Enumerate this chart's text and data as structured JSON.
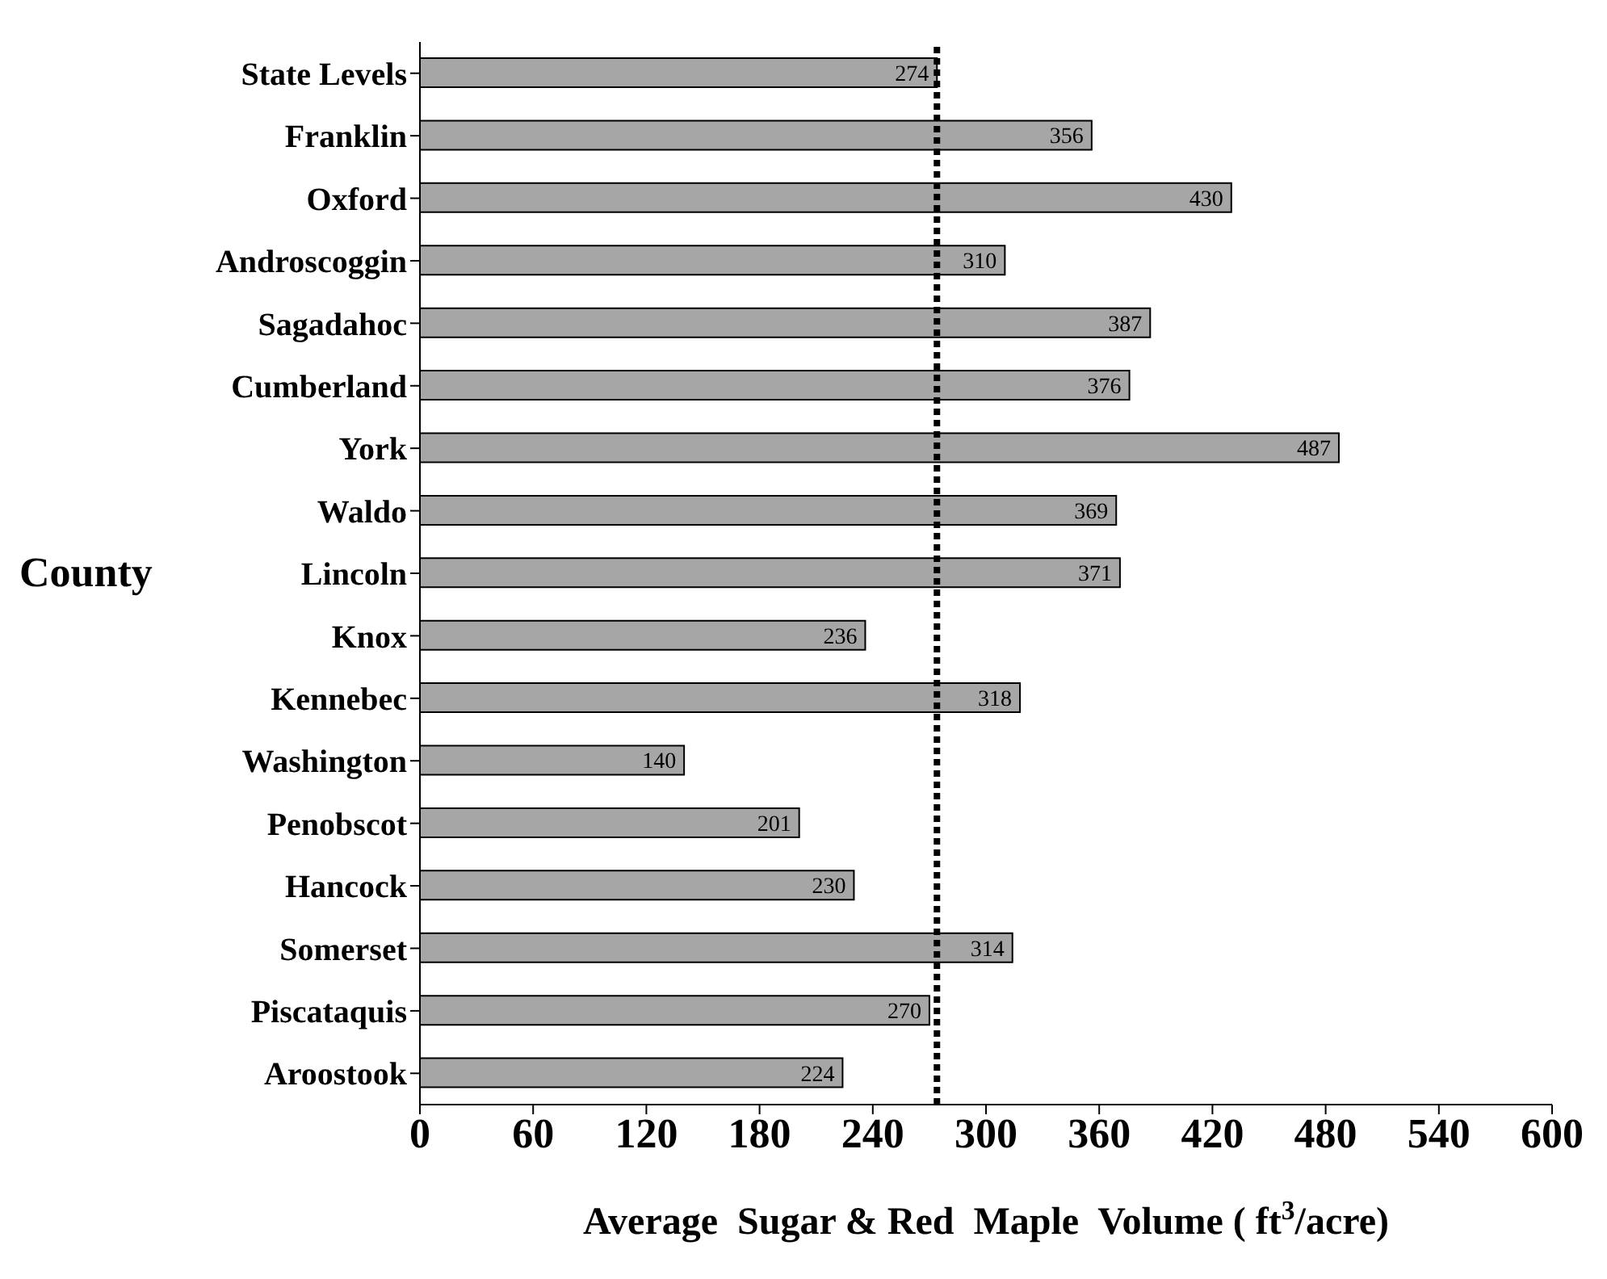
{
  "chart_data": {
    "type": "bar",
    "orientation": "horizontal",
    "xlabel": "Average  Sugar & Red  Maple  Volume ( ft$^{3}$/acre)",
    "ylabel": "County",
    "categories": [
      "State Levels",
      "Franklin",
      "Oxford",
      "Androscoggin",
      "Sagadahoc",
      "Cumberland",
      "York",
      "Waldo",
      "Lincoln",
      "Knox",
      "Kennebec",
      "Washington",
      "Penobscot",
      "Hancock",
      "Somerset",
      "Piscataquis",
      "Aroostook"
    ],
    "values": [
      274,
      356,
      430,
      310,
      387,
      376,
      487,
      369,
      371,
      236,
      318,
      140,
      201,
      230,
      314,
      270,
      224
    ],
    "color": "#a6a6a6",
    "data_labels": true,
    "xlim": [
      0,
      600
    ],
    "xticks": [
      0,
      60,
      120,
      180,
      240,
      300,
      360,
      420,
      480,
      540,
      600
    ],
    "ref_lines": [
      {
        "axis": "x",
        "value": 274,
        "color": "#000000",
        "line_style": "dotted"
      }
    ],
    "grid": false
  }
}
